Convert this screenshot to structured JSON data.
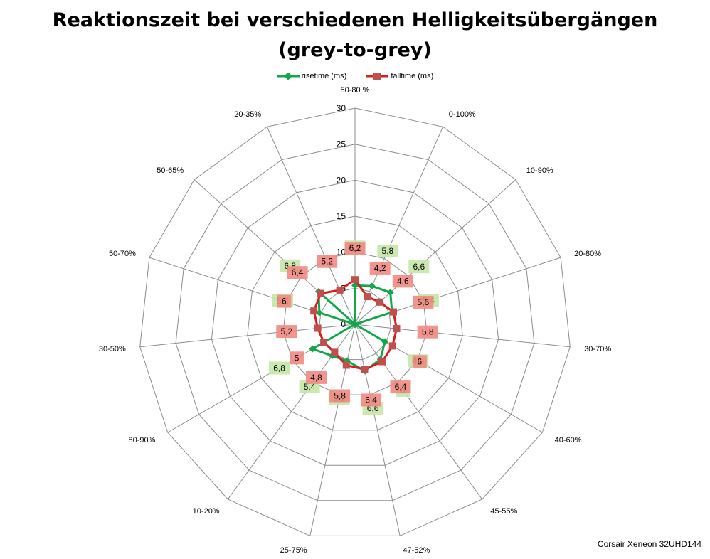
{
  "chart_data": {
    "type": "radar",
    "title": "Reaktionszeit bei verschiedenen Helligkeitsübergängen (grey-to-grey)",
    "title_lines": [
      "Reaktionszeit bei verschiedenen Helligkeitsübergängen",
      "(grey-to-grey)"
    ],
    "categories": [
      "50-80 %",
      "0-100%",
      "10-90%",
      "20-80%",
      "30-70%",
      "40-60%",
      "45-55%",
      "47-52%",
      "25-75%",
      "10-20%",
      "80-90%",
      "30-50%",
      "50-70%",
      "50-65%",
      "20-35%"
    ],
    "axis_ticks": [
      "0",
      "5",
      "10",
      "15",
      "20",
      "25",
      "30"
    ],
    "rmax": 30,
    "series": [
      {
        "name": "risetime (ms)",
        "color": "#12a84a",
        "label_bg": "#c4e6a6",
        "values": [
          5.4,
          5.8,
          6.6,
          5.4,
          0,
          4.8,
          6.0,
          6.6,
          5.2,
          5.4,
          6.8,
          0,
          5.2,
          6.8,
          0
        ],
        "labels": [
          "5,4",
          "5,8",
          "6,6",
          "5,4",
          "",
          "4,8",
          "6",
          "6,6",
          "5,2",
          "5,4",
          "6,8",
          "",
          "5,2",
          "6,8",
          ""
        ]
      },
      {
        "name": "falltime (ms)",
        "color": "#d42020",
        "label_bg": "#f08a82",
        "values": [
          6.2,
          4.2,
          4.6,
          5.6,
          5.8,
          6.0,
          6.4,
          6.4,
          5.8,
          4.8,
          5.0,
          5.2,
          6.0,
          6.4,
          5.2
        ],
        "labels": [
          "6,2",
          "4,2",
          "4,6",
          "5,6",
          "5,8",
          "6",
          "6,4",
          "6,4",
          "5,8",
          "4,8",
          "5",
          "5,2",
          "6",
          "6,4",
          "5,2"
        ]
      }
    ],
    "legend_position": "top",
    "grid": true
  },
  "footer_text": "Corsair Xeneon 32UHD144"
}
